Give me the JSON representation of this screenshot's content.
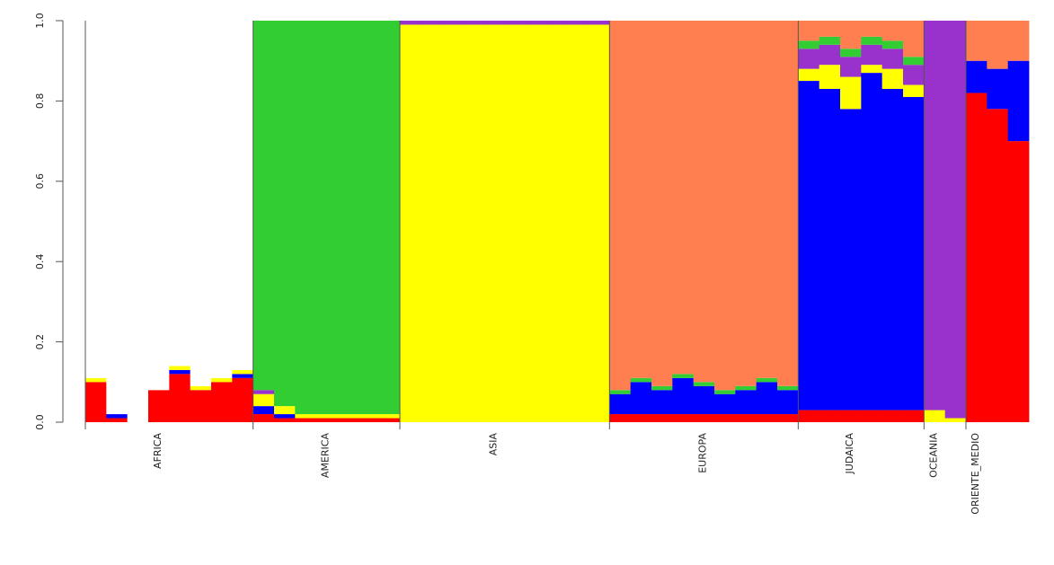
{
  "chart_data": {
    "type": "stacked_bar",
    "categories": [
      null,
      null,
      null,
      "AFRICA",
      null,
      null,
      null,
      null,
      null,
      null,
      null,
      "AMERICA",
      null,
      null,
      null,
      null,
      null,
      null,
      null,
      "ASIA",
      null,
      null,
      null,
      null,
      null,
      null,
      null,
      null,
      null,
      "EUROPA",
      null,
      null,
      null,
      null,
      null,
      null,
      "JUDAICA",
      null,
      null,
      null,
      "OCEANIA",
      null,
      "ORIENTE_MEDIO",
      null,
      null
    ],
    "series": [
      {
        "color": "#ff0000",
        "values": [
          0.1,
          0.01,
          0,
          0.08,
          0.12,
          0.08,
          0.1,
          0.11,
          0.02,
          0.01,
          0.01,
          0.01,
          0.01,
          0.01,
          0.01,
          0,
          0,
          0,
          0,
          0,
          0,
          0,
          0,
          0,
          0,
          0.02,
          0.02,
          0.02,
          0.02,
          0.02,
          0.02,
          0.02,
          0.02,
          0.02,
          0.03,
          0.03,
          0.03,
          0.03,
          0.03,
          0.03,
          0,
          0,
          0.82,
          0.78,
          0.7
        ]
      },
      {
        "color": "#0000ff",
        "values": [
          0,
          0.01,
          0,
          0,
          0.01,
          0,
          0,
          0.01,
          0.02,
          0.01,
          0,
          0,
          0,
          0,
          0,
          0,
          0,
          0,
          0,
          0,
          0,
          0,
          0,
          0,
          0,
          0.05,
          0.08,
          0.06,
          0.09,
          0.07,
          0.05,
          0.06,
          0.08,
          0.06,
          0.82,
          0.8,
          0.75,
          0.84,
          0.8,
          0.78,
          0,
          0,
          0.08,
          0.1,
          0.2
        ]
      },
      {
        "color": "#ffff00",
        "values": [
          0.01,
          0,
          0,
          0,
          0.01,
          0.01,
          0.01,
          0.01,
          0.03,
          0.02,
          0.01,
          0.01,
          0.01,
          0.01,
          0.01,
          0.99,
          0.99,
          0.99,
          0.99,
          0.99,
          0.99,
          0.99,
          0.99,
          0.99,
          0.99,
          0,
          0,
          0,
          0,
          0,
          0,
          0,
          0,
          0,
          0.03,
          0.06,
          0.08,
          0.02,
          0.05,
          0.03,
          0.03,
          0.01,
          0,
          0,
          0
        ]
      },
      {
        "color": "#9932cc",
        "values": [
          0,
          0,
          0,
          0,
          0,
          0,
          0,
          0,
          0.01,
          0,
          0,
          0,
          0,
          0,
          0,
          0.01,
          0.01,
          0.01,
          0.01,
          0.01,
          0.01,
          0.01,
          0.01,
          0.01,
          0.01,
          0,
          0,
          0,
          0,
          0,
          0,
          0,
          0,
          0,
          0.05,
          0.05,
          0.05,
          0.05,
          0.05,
          0.05,
          0.97,
          0.99,
          0,
          0,
          0
        ]
      },
      {
        "color": "#32cd32",
        "values": [
          0,
          0,
          0,
          0,
          0,
          0,
          0,
          0,
          0.92,
          0.96,
          0.98,
          0.98,
          0.98,
          0.98,
          0.98,
          0,
          0,
          0,
          0,
          0,
          0,
          0,
          0,
          0,
          0,
          0.01,
          0.01,
          0.01,
          0.01,
          0.01,
          0.01,
          0.01,
          0.01,
          0.01,
          0.02,
          0.02,
          0.02,
          0.02,
          0.02,
          0.02,
          0,
          0,
          0,
          0,
          0
        ]
      },
      {
        "color": "#ff7f50",
        "values": [
          0,
          0,
          0,
          0,
          0,
          0,
          0,
          0,
          0,
          0,
          0,
          0,
          0,
          0,
          0,
          0,
          0,
          0,
          0,
          0,
          0,
          0,
          0,
          0,
          0,
          0.92,
          0.89,
          0.91,
          0.88,
          0.9,
          0.92,
          0.91,
          0.89,
          0.91,
          0.05,
          0.04,
          0.07,
          0.04,
          0.05,
          0.09,
          0,
          0,
          0.1,
          0.12,
          0.1
        ]
      },
      {
        "color": "#ffffff",
        "values": [
          0.89,
          0.98,
          1,
          0.92,
          0.86,
          0.91,
          0.89,
          0.87,
          0,
          0,
          0,
          0,
          0,
          0,
          0,
          0,
          0,
          0,
          0,
          0,
          0,
          0,
          0,
          0,
          0,
          0,
          0,
          0,
          0,
          0,
          0,
          0,
          0,
          0,
          0,
          0,
          0,
          0,
          0,
          0,
          0,
          0,
          0,
          0,
          0
        ]
      }
    ],
    "ylim": [
      0,
      1
    ],
    "yticks": [
      {
        "value": 0,
        "label": "0.0"
      },
      0.2,
      0.4,
      0.6,
      0.8,
      {
        "value": 1,
        "label": "1.0"
      }
    ]
  }
}
